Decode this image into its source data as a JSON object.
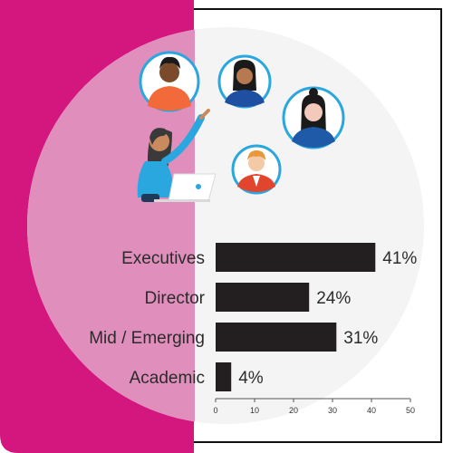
{
  "colors": {
    "magenta": "#d4177f",
    "circle_light": "#f4f4f4",
    "circle_pink_overlay": "#e08fbd",
    "bar": "#231f20",
    "avatar_ring": "#2aa7de"
  },
  "illustration": {
    "presenter": "woman-presenting-at-laptop",
    "avatars": [
      "man-orange-shirt",
      "woman-blue-top",
      "woman-blue-top-long-hair",
      "man-red-jacket"
    ]
  },
  "chart_data": {
    "type": "bar",
    "orientation": "horizontal",
    "categories": [
      "Executives",
      "Director",
      "Mid / Emerging",
      "Academic"
    ],
    "values": [
      41,
      24,
      31,
      4
    ],
    "value_labels": [
      "41%",
      "24%",
      "31%",
      "4%"
    ],
    "xlim": [
      0,
      50
    ],
    "xticks": [
      "0",
      "10",
      "20",
      "30",
      "40",
      "50"
    ],
    "grid": false,
    "legend": "none"
  }
}
